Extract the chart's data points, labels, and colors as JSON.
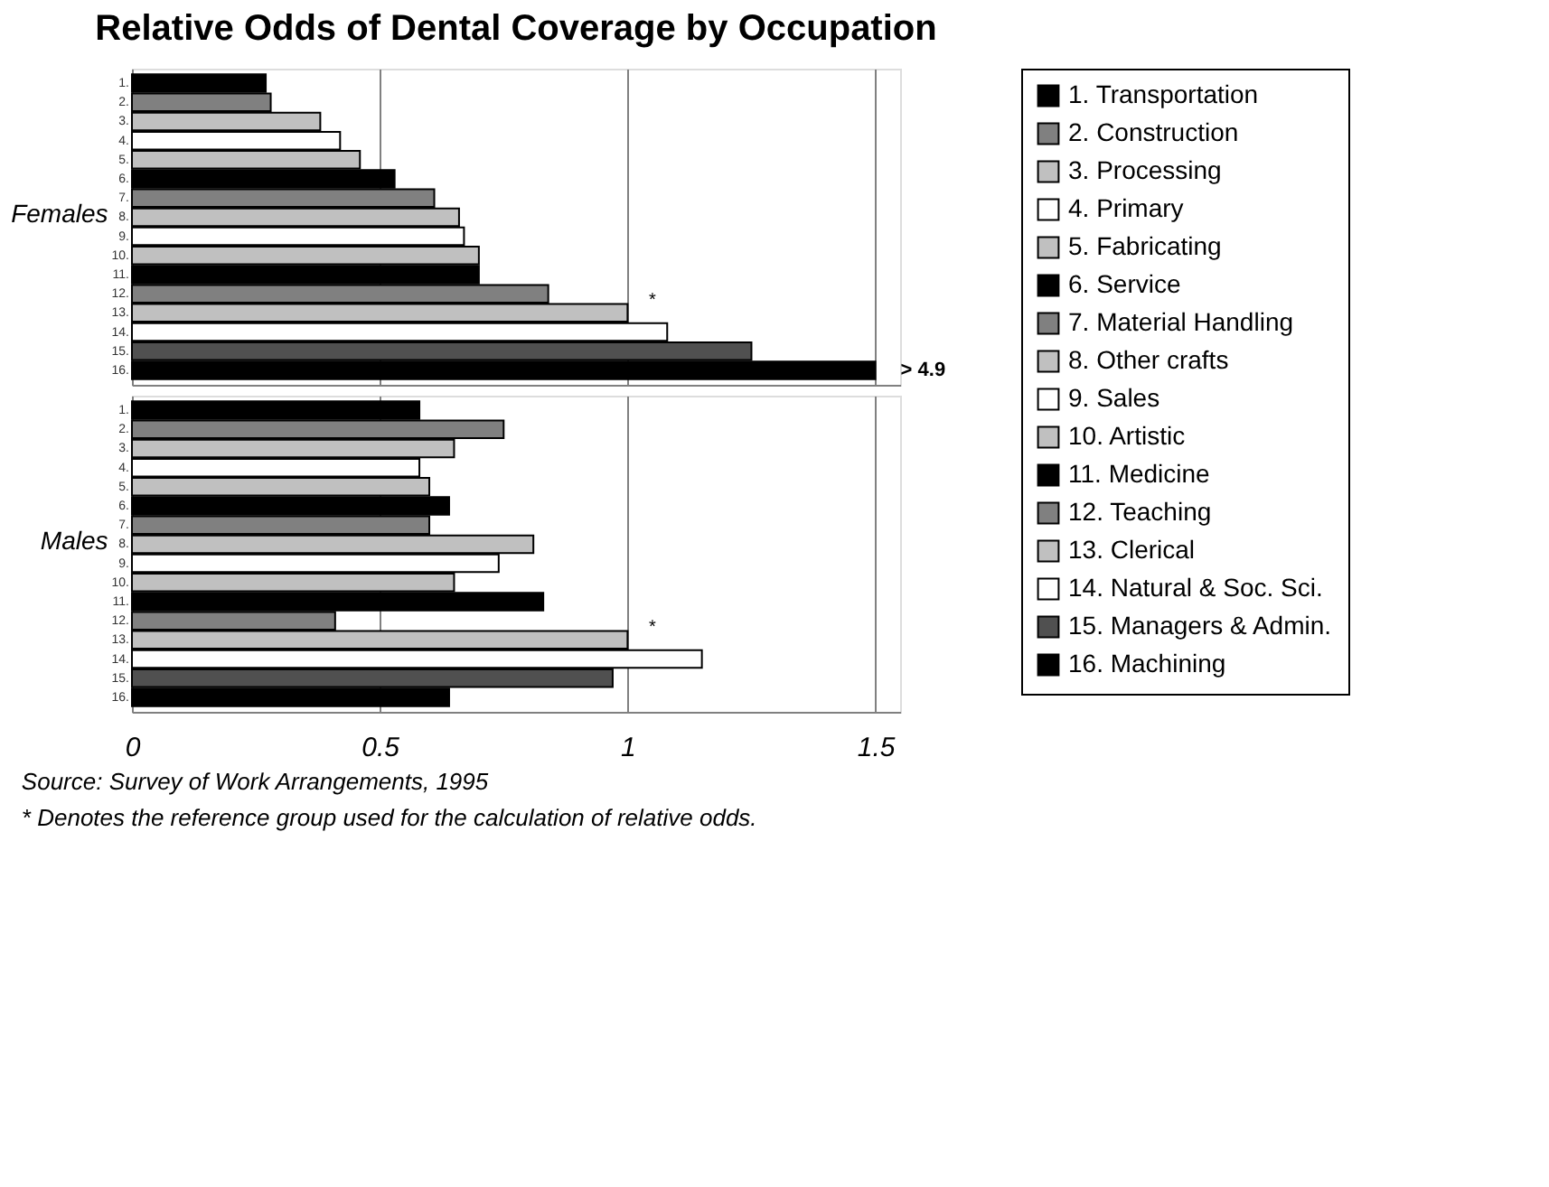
{
  "chart_data": [
    {
      "type": "bar",
      "orientation": "horizontal",
      "title": "Relative Odds of  Dental Coverage by Occupation",
      "ylabel": "Females",
      "categories": [
        "1.",
        "2.",
        "3.",
        "4.",
        "5.",
        "6.",
        "7.",
        "8.",
        "9.",
        "10.",
        "11.",
        "12.",
        "13.",
        "14.",
        "15.",
        "16."
      ],
      "xlim": [
        0,
        1.55
      ],
      "xticks": [
        0,
        0.5,
        1,
        1.5
      ],
      "grid": "x",
      "tick_labels": "y",
      "legend": "right",
      "annotations": [
        {
          "text": "*",
          "x": 1.05,
          "y": "13."
        }
      ],
      "series": [
        {
          "name": "1. Transportation",
          "color": "#000000",
          "values": [
            0.27,
            null,
            null,
            null,
            null,
            null,
            null,
            null,
            null,
            null,
            null,
            null,
            null,
            null,
            null,
            null
          ]
        },
        {
          "name": "2. Construction",
          "color": "#808080",
          "values": [
            null,
            0.28,
            null,
            null,
            null,
            null,
            null,
            null,
            null,
            null,
            null,
            null,
            null,
            null,
            null,
            null
          ]
        },
        {
          "name": "3. Processing",
          "color": "#c0c0c0",
          "values": [
            null,
            null,
            0.38,
            null,
            null,
            null,
            null,
            null,
            null,
            null,
            null,
            null,
            null,
            null,
            null,
            null
          ]
        },
        {
          "name": "4. Primary",
          "color": "#ffffff",
          "values": [
            null,
            null,
            null,
            0.42,
            null,
            null,
            null,
            null,
            null,
            null,
            null,
            null,
            null,
            null,
            null,
            null
          ]
        },
        {
          "name": "5. Fabricating",
          "color": "#c0c0c0",
          "values": [
            null,
            null,
            null,
            null,
            0.46,
            null,
            null,
            null,
            null,
            null,
            null,
            null,
            null,
            null,
            null,
            null
          ]
        },
        {
          "name": "6. Service",
          "color": "#000000",
          "values": [
            null,
            null,
            null,
            null,
            null,
            0.53,
            null,
            null,
            null,
            null,
            null,
            null,
            null,
            null,
            null,
            null
          ]
        },
        {
          "name": "7. Material Handling",
          "color": "#808080",
          "values": [
            null,
            null,
            null,
            null,
            null,
            null,
            0.61,
            null,
            null,
            null,
            null,
            null,
            null,
            null,
            null,
            null
          ]
        },
        {
          "name": "8. Other crafts",
          "color": "#c0c0c0",
          "values": [
            null,
            null,
            null,
            null,
            null,
            null,
            null,
            0.66,
            null,
            null,
            null,
            null,
            null,
            null,
            null,
            null
          ]
        },
        {
          "name": "9. Sales",
          "color": "#ffffff",
          "values": [
            null,
            null,
            null,
            null,
            null,
            null,
            null,
            null,
            0.67,
            null,
            null,
            null,
            null,
            null,
            null,
            null
          ]
        },
        {
          "name": "10. Artistic",
          "color": "#c0c0c0",
          "values": [
            null,
            null,
            null,
            null,
            null,
            null,
            null,
            null,
            null,
            0.7,
            null,
            null,
            null,
            null,
            null,
            null
          ]
        },
        {
          "name": "11. Medicine",
          "color": "#000000",
          "values": [
            null,
            null,
            null,
            null,
            null,
            null,
            null,
            null,
            null,
            null,
            0.7,
            null,
            null,
            null,
            null,
            null
          ]
        },
        {
          "name": "12. Teaching",
          "color": "#808080",
          "values": [
            null,
            null,
            null,
            null,
            null,
            null,
            null,
            null,
            null,
            null,
            null,
            0.84,
            null,
            null,
            null,
            null
          ]
        },
        {
          "name": "13. Clerical",
          "color": "#c0c0c0",
          "values": [
            null,
            null,
            null,
            null,
            null,
            null,
            null,
            null,
            null,
            null,
            null,
            null,
            1.0,
            null,
            null,
            null
          ]
        },
        {
          "name": "14. Natural & Soc. Sci.",
          "color": "#ffffff",
          "values": [
            null,
            null,
            null,
            null,
            null,
            null,
            null,
            null,
            null,
            null,
            null,
            null,
            null,
            1.08,
            null,
            null
          ]
        },
        {
          "name": "15. Managers & Admin.",
          "color": "#505050",
          "values": [
            null,
            null,
            null,
            null,
            null,
            null,
            null,
            null,
            null,
            null,
            null,
            null,
            null,
            null,
            1.25,
            null
          ]
        },
        {
          "name": "16. Machining",
          "color": "#000000",
          "values": [
            null,
            null,
            null,
            null,
            null,
            null,
            null,
            null,
            null,
            null,
            null,
            null,
            null,
            null,
            null,
            1.5
          ],
          "value_labels": [
            null,
            null,
            null,
            null,
            null,
            null,
            null,
            null,
            null,
            null,
            null,
            null,
            null,
            null,
            null,
            "> 4.9"
          ]
        }
      ]
    },
    {
      "type": "bar",
      "orientation": "horizontal",
      "ylabel": "Males",
      "categories": [
        "1.",
        "2.",
        "3.",
        "4.",
        "5.",
        "6.",
        "7.",
        "8.",
        "9.",
        "10.",
        "11.",
        "12.",
        "13.",
        "14.",
        "15.",
        "16."
      ],
      "xlim": [
        0,
        1.55
      ],
      "xticks": [
        0,
        0.5,
        1,
        1.5
      ],
      "grid": "x",
      "values": [
        0.58,
        0.75,
        0.65,
        0.58,
        0.6,
        0.64,
        0.6,
        0.81,
        0.74,
        0.65,
        0.83,
        0.41,
        1.0,
        1.15,
        0.97,
        0.64
      ],
      "colors": [
        "#000000",
        "#808080",
        "#c0c0c0",
        "#ffffff",
        "#c0c0c0",
        "#000000",
        "#808080",
        "#c0c0c0",
        "#ffffff",
        "#c0c0c0",
        "#000000",
        "#808080",
        "#c0c0c0",
        "#ffffff",
        "#505050",
        "#000000"
      ],
      "annotations": [
        {
          "text": "*",
          "x": 1.05,
          "y": "13."
        },
        "Source: Survey of Work Arrangements, 1995",
        "* Denotes the reference group used for the calculation of relative odds."
      ]
    }
  ]
}
